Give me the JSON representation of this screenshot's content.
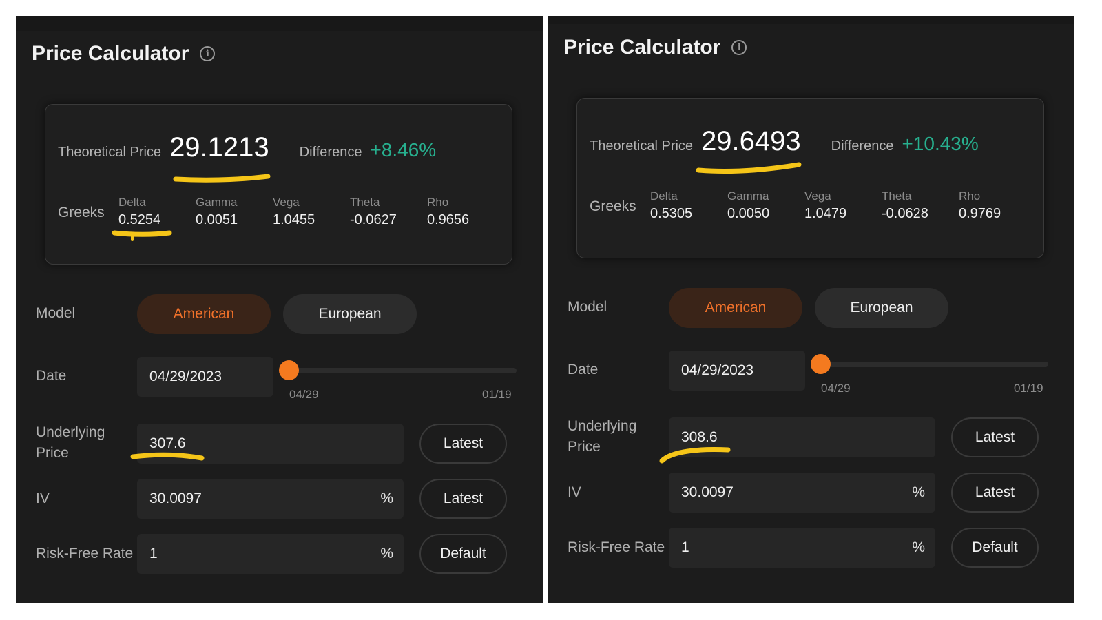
{
  "panels": [
    {
      "title": "Price Calculator",
      "theoretical_price_label": "Theoretical Price",
      "theoretical_price": "29.1213",
      "difference_label": "Difference",
      "difference": "+8.46%",
      "greeks_label": "Greeks",
      "greeks": [
        {
          "name": "Delta",
          "value": "0.5254"
        },
        {
          "name": "Gamma",
          "value": "0.0051"
        },
        {
          "name": "Vega",
          "value": "1.0455"
        },
        {
          "name": "Theta",
          "value": "-0.0627"
        },
        {
          "name": "Rho",
          "value": "0.9656"
        }
      ],
      "model_label": "Model",
      "model_options": [
        "American",
        "European"
      ],
      "model_selected": "American",
      "date_label": "Date",
      "date_value": "04/29/2023",
      "slider_start": "04/29",
      "slider_end": "01/19",
      "underlying_label_1": "Underlying",
      "underlying_label_2": "Price",
      "underlying_value": "307.6",
      "latest_label": "Latest",
      "iv_label": "IV",
      "iv_value": "30.0097",
      "percent": "%",
      "rfr_label": "Risk-Free Rate",
      "rfr_value": "1",
      "default_label": "Default"
    },
    {
      "title": "Price Calculator",
      "theoretical_price_label": "Theoretical Price",
      "theoretical_price": "29.6493",
      "difference_label": "Difference",
      "difference": "+10.43%",
      "greeks_label": "Greeks",
      "greeks": [
        {
          "name": "Delta",
          "value": "0.5305"
        },
        {
          "name": "Gamma",
          "value": "0.0050"
        },
        {
          "name": "Vega",
          "value": "1.0479"
        },
        {
          "name": "Theta",
          "value": "-0.0628"
        },
        {
          "name": "Rho",
          "value": "0.9769"
        }
      ],
      "model_label": "Model",
      "model_options": [
        "American",
        "European"
      ],
      "model_selected": "American",
      "date_label": "Date",
      "date_value": "04/29/2023",
      "slider_start": "04/29",
      "slider_end": "01/19",
      "underlying_label_1": "Underlying",
      "underlying_label_2": "Price",
      "underlying_value": "308.6",
      "latest_label": "Latest",
      "iv_label": "IV",
      "iv_value": "30.0097",
      "percent": "%",
      "rfr_label": "Risk-Free Rate",
      "rfr_value": "1",
      "default_label": "Default"
    }
  ],
  "colors": {
    "panel_bg": "#1c1c1c",
    "accent_orange": "#f47a1f",
    "positive_green": "#27b08f",
    "highlight_marker": "#f5c518"
  },
  "icons": [
    "info-icon"
  ]
}
